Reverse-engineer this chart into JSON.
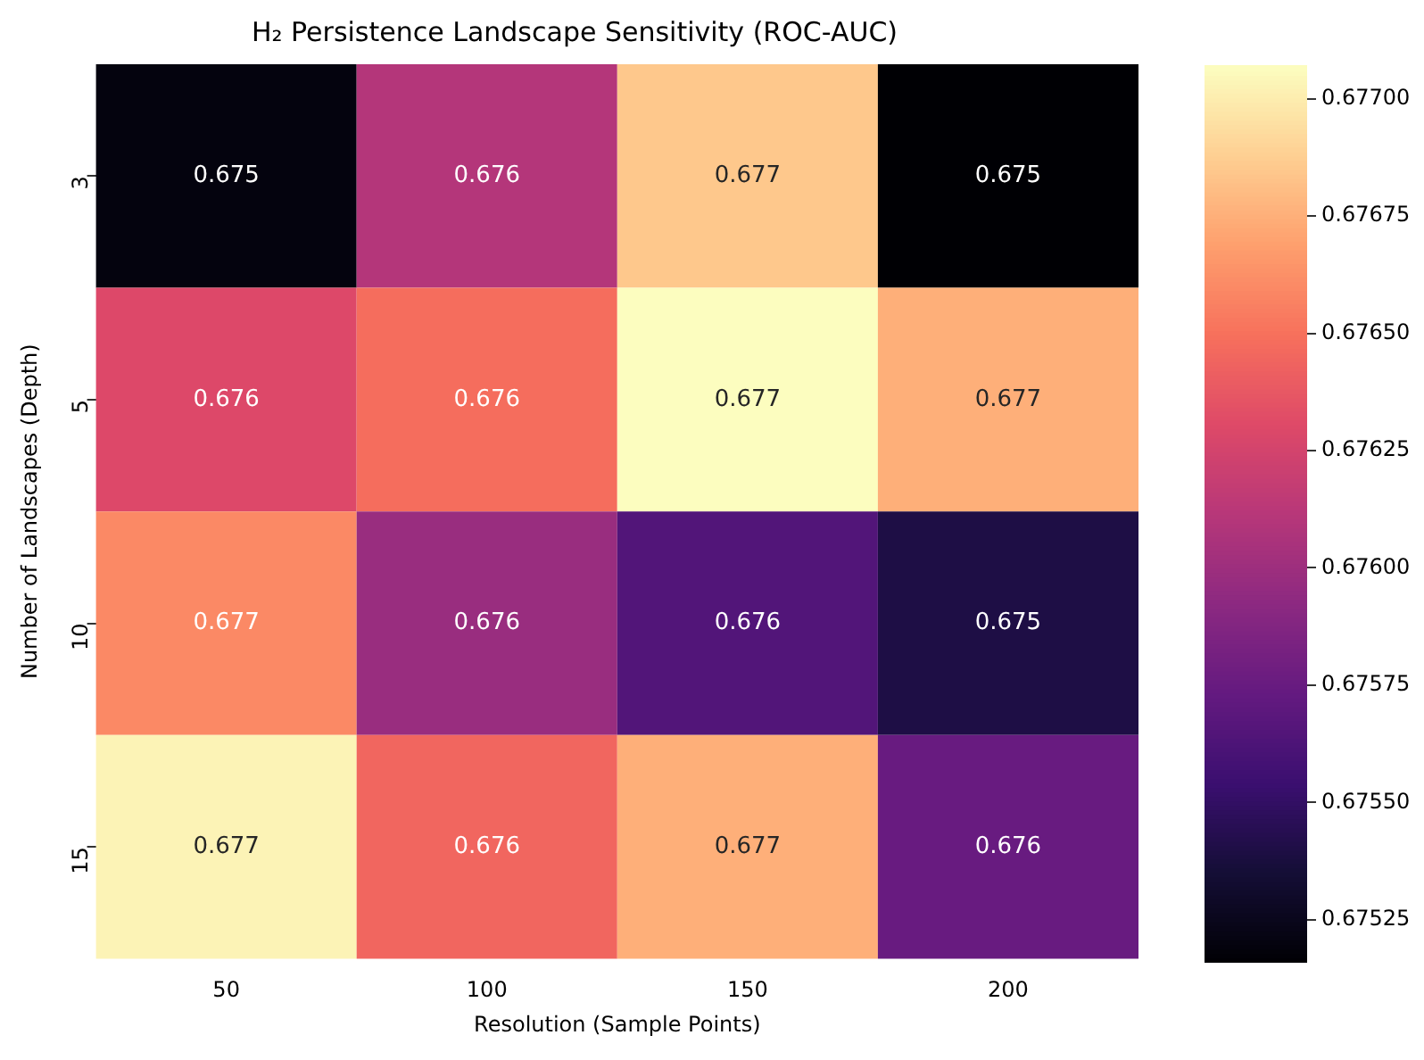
{
  "chart_data": {
    "type": "heatmap",
    "title": "H₂ Persistence Landscape Sensitivity (ROC-AUC)",
    "xlabel": "Resolution (Sample Points)",
    "ylabel": "Number of Landscapes (Depth)",
    "categories": [
      "50",
      "100",
      "150",
      "200"
    ],
    "y_categories": [
      "3",
      "5",
      "10",
      "15"
    ],
    "cells": [
      [
        0.6752,
        0.6761,
        0.67685,
        0.67516
      ],
      [
        0.6763,
        0.67648,
        0.67707,
        0.67675
      ],
      [
        0.6766,
        0.67598,
        0.67565,
        0.6754
      ],
      [
        0.67703,
        0.67645,
        0.67675,
        0.67575
      ]
    ],
    "cell_labels": [
      [
        "0.675",
        "0.676",
        "0.677",
        "0.675"
      ],
      [
        "0.676",
        "0.676",
        "0.677",
        "0.677"
      ],
      [
        "0.677",
        "0.676",
        "0.676",
        "0.675"
      ],
      [
        "0.677",
        "0.676",
        "0.677",
        "0.676"
      ]
    ],
    "clim": [
      0.67516,
      0.67707
    ],
    "cticks": [
      {
        "value": 0.67525,
        "label": "0.67525"
      },
      {
        "value": 0.6755,
        "label": "0.67550"
      },
      {
        "value": 0.67575,
        "label": "0.67575"
      },
      {
        "value": 0.676,
        "label": "0.67600"
      },
      {
        "value": 0.67625,
        "label": "0.67625"
      },
      {
        "value": 0.6765,
        "label": "0.67650"
      },
      {
        "value": 0.67675,
        "label": "0.67675"
      },
      {
        "value": 0.677,
        "label": "0.67700"
      }
    ]
  }
}
